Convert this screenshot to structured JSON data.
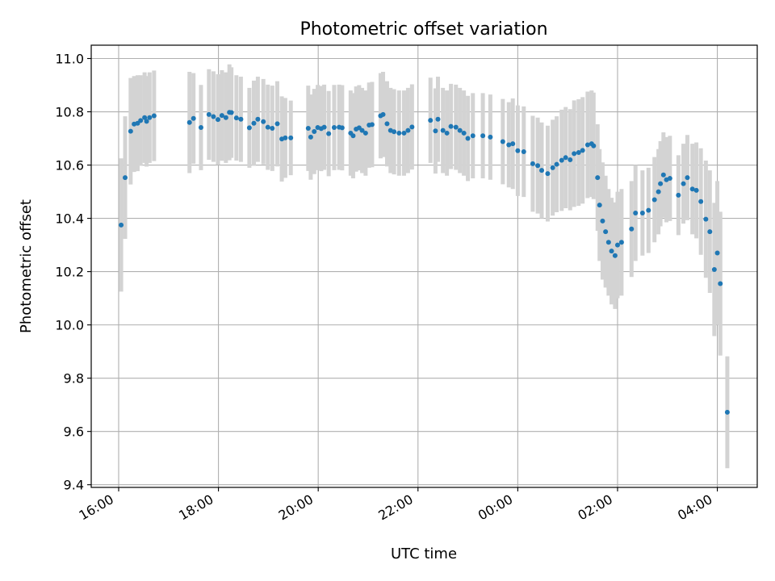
{
  "chart_data": {
    "type": "scatter",
    "title": "Photometric offset variation",
    "xlabel": "UTC time",
    "ylabel": "Photometric offset",
    "x_ticks": [
      {
        "label": "16:00",
        "hours": 16
      },
      {
        "label": "18:00",
        "hours": 18
      },
      {
        "label": "20:00",
        "hours": 20
      },
      {
        "label": "22:00",
        "hours": 22
      },
      {
        "label": "00:00",
        "hours": 24
      },
      {
        "label": "02:00",
        "hours": 26
      },
      {
        "label": "04:00",
        "hours": 28
      }
    ],
    "y_ticks": [
      "9.4",
      "9.6",
      "9.8",
      "10.0",
      "10.2",
      "10.4",
      "10.6",
      "10.8",
      "11.0"
    ],
    "xlim_hours": [
      15.45,
      28.8
    ],
    "ylim": [
      9.39,
      11.05
    ],
    "grid": true,
    "point_color": "#1f77b4",
    "errorbar_color": "#d3d3d3",
    "series": [
      {
        "x_hours": [
          16.05,
          16.13,
          16.24,
          16.31,
          16.38,
          16.44,
          16.52,
          16.56,
          16.62,
          16.71,
          17.42,
          17.5,
          17.65,
          17.81,
          17.9,
          17.99,
          18.07,
          18.15,
          18.22,
          18.26,
          18.36,
          18.45,
          18.62,
          18.71,
          18.79,
          18.9,
          18.99,
          19.08,
          19.18,
          19.27,
          19.34,
          19.45,
          19.8,
          19.85,
          19.92,
          19.99,
          20.06,
          20.12,
          20.21,
          20.32,
          20.42,
          20.48,
          20.65,
          20.7,
          20.76,
          20.82,
          20.88,
          20.95,
          21.02,
          21.08,
          21.25,
          21.3,
          21.38,
          21.45,
          21.52,
          21.62,
          21.72,
          21.8,
          21.88,
          22.25,
          22.35,
          22.4,
          22.5,
          22.58,
          22.66,
          22.76,
          22.84,
          22.92,
          23.0,
          23.1,
          23.3,
          23.45,
          23.7,
          23.82,
          23.9,
          24.0,
          24.12,
          24.3,
          24.4,
          24.48,
          24.6,
          24.7,
          24.78,
          24.88,
          24.96,
          25.05,
          25.13,
          25.22,
          25.3,
          25.4,
          25.48,
          25.52,
          25.6,
          25.64,
          25.7,
          25.76,
          25.82,
          25.88,
          25.95,
          26.0,
          26.08,
          26.28,
          26.36,
          26.5,
          26.62,
          26.74,
          26.82,
          26.86,
          26.92,
          26.98,
          27.05,
          27.22,
          27.32,
          27.4,
          27.5,
          27.58,
          27.67,
          27.77,
          27.85,
          27.94,
          28.0,
          28.06,
          28.2
        ],
        "y": [
          10.375,
          10.553,
          10.727,
          10.754,
          10.757,
          10.767,
          10.778,
          10.764,
          10.778,
          10.785,
          10.76,
          10.775,
          10.741,
          10.79,
          10.782,
          10.771,
          10.786,
          10.778,
          10.798,
          10.797,
          10.777,
          10.772,
          10.74,
          10.757,
          10.772,
          10.763,
          10.742,
          10.738,
          10.755,
          10.698,
          10.702,
          10.702,
          10.738,
          10.705,
          10.726,
          10.741,
          10.737,
          10.742,
          10.718,
          10.741,
          10.742,
          10.74,
          10.72,
          10.71,
          10.735,
          10.74,
          10.73,
          10.72,
          10.75,
          10.752,
          10.785,
          10.79,
          10.755,
          10.73,
          10.725,
          10.72,
          10.72,
          10.73,
          10.743,
          10.768,
          10.728,
          10.772,
          10.73,
          10.72,
          10.745,
          10.742,
          10.73,
          10.72,
          10.7,
          10.71,
          10.71,
          10.705,
          10.688,
          10.676,
          10.68,
          10.654,
          10.65,
          10.605,
          10.598,
          10.58,
          10.568,
          10.59,
          10.603,
          10.618,
          10.628,
          10.62,
          10.643,
          10.647,
          10.655,
          10.676,
          10.68,
          10.672,
          10.553,
          10.45,
          10.39,
          10.35,
          10.31,
          10.277,
          10.26,
          10.3,
          10.31,
          10.36,
          10.42,
          10.42,
          10.43,
          10.47,
          10.5,
          10.53,
          10.563,
          10.545,
          10.55,
          10.487,
          10.53,
          10.553,
          10.51,
          10.505,
          10.463,
          10.397,
          10.35,
          10.208,
          10.27,
          10.155,
          9.672
        ],
        "err": [
          0.25,
          0.23,
          0.2,
          0.18,
          0.18,
          0.17,
          0.17,
          0.17,
          0.17,
          0.17,
          0.19,
          0.17,
          0.16,
          0.17,
          0.17,
          0.17,
          0.17,
          0.17,
          0.18,
          0.17,
          0.16,
          0.16,
          0.15,
          0.16,
          0.16,
          0.16,
          0.16,
          0.16,
          0.16,
          0.16,
          0.15,
          0.14,
          0.16,
          0.16,
          0.16,
          0.16,
          0.16,
          0.16,
          0.16,
          0.16,
          0.16,
          0.16,
          0.16,
          0.16,
          0.16,
          0.16,
          0.16,
          0.16,
          0.16,
          0.16,
          0.16,
          0.16,
          0.16,
          0.16,
          0.16,
          0.16,
          0.16,
          0.16,
          0.16,
          0.16,
          0.16,
          0.16,
          0.16,
          0.16,
          0.16,
          0.16,
          0.16,
          0.16,
          0.16,
          0.16,
          0.16,
          0.16,
          0.16,
          0.16,
          0.17,
          0.17,
          0.17,
          0.18,
          0.18,
          0.18,
          0.18,
          0.18,
          0.18,
          0.19,
          0.19,
          0.19,
          0.2,
          0.2,
          0.2,
          0.2,
          0.2,
          0.2,
          0.2,
          0.21,
          0.22,
          0.21,
          0.2,
          0.2,
          0.2,
          0.2,
          0.2,
          0.18,
          0.18,
          0.16,
          0.16,
          0.16,
          0.16,
          0.16,
          0.16,
          0.16,
          0.16,
          0.15,
          0.15,
          0.16,
          0.17,
          0.18,
          0.2,
          0.22,
          0.23,
          0.25,
          0.27,
          0.27,
          0.21
        ]
      }
    ]
  }
}
